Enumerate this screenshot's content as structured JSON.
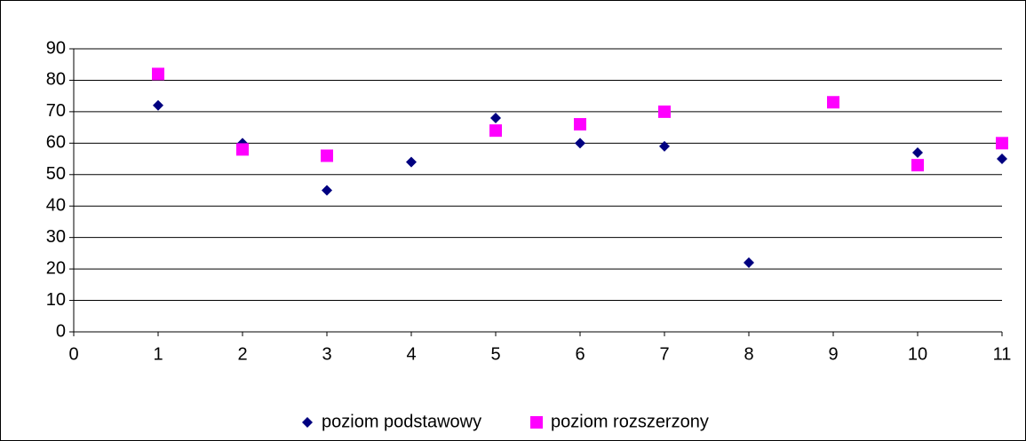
{
  "chart_data": {
    "type": "scatter",
    "series": [
      {
        "name": "poziom podstawowy",
        "color": "#000080",
        "marker": "diamond",
        "x": [
          1,
          2,
          3,
          4,
          5,
          6,
          7,
          8,
          10,
          11
        ],
        "values": [
          72,
          60,
          45,
          54,
          68,
          60,
          59,
          22,
          57,
          55
        ]
      },
      {
        "name": "poziom rozszerzony",
        "color": "#ff00ff",
        "marker": "square",
        "x": [
          1,
          2,
          3,
          5,
          6,
          7,
          9,
          10,
          11
        ],
        "values": [
          82,
          58,
          56,
          64,
          66,
          70,
          73,
          53,
          60
        ]
      }
    ],
    "xlim": [
      0,
      11
    ],
    "xticks": [
      0,
      1,
      2,
      3,
      4,
      5,
      6,
      7,
      8,
      9,
      10,
      11
    ],
    "ylim": [
      0,
      90
    ],
    "yticks": [
      0,
      10,
      20,
      30,
      40,
      50,
      60,
      70,
      80,
      90
    ],
    "grid": true,
    "legend": "bottom"
  }
}
